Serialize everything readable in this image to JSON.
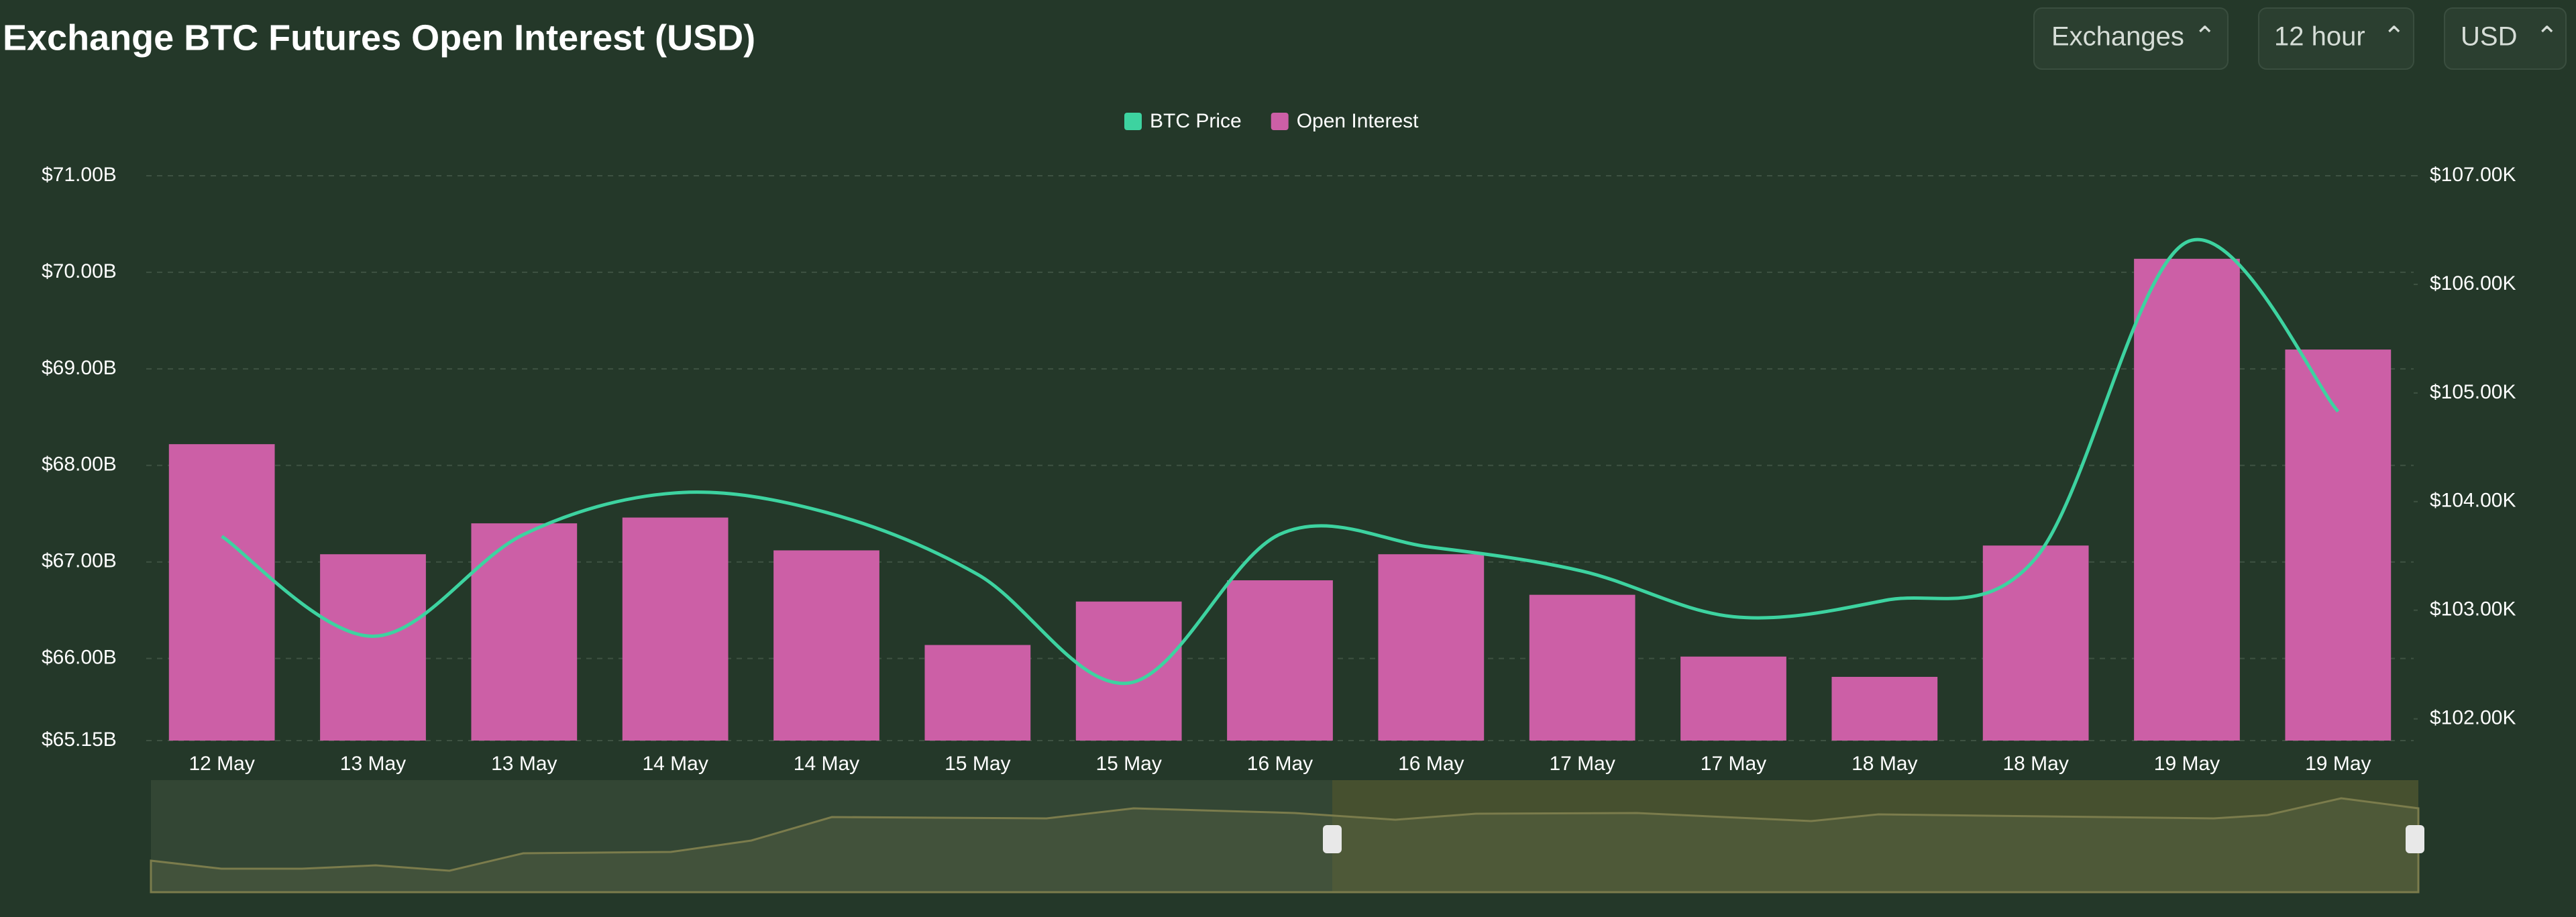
{
  "title": "Exchange BTC Futures Open Interest (USD)",
  "controls": [
    "Exchanges",
    "12 hour",
    "USD"
  ],
  "chart_data": {
    "type": "bar",
    "categories": [
      "12 May",
      "13 May",
      "13 May",
      "14 May",
      "14 May",
      "15 May",
      "15 May",
      "16 May",
      "16 May",
      "17 May",
      "17 May",
      "18 May",
      "18 May",
      "19 May",
      "19 May"
    ],
    "series": [
      {
        "name": "BTC Price",
        "type": "line",
        "axis": "y2",
        "color": "#3dd3a0",
        "values": [
          103.68,
          102.76,
          103.7,
          104.08,
          103.9,
          103.33,
          102.33,
          103.7,
          103.58,
          103.36,
          102.94,
          103.09,
          103.48,
          106.39,
          104.83
        ]
      },
      {
        "name": "Open Interest",
        "type": "bar",
        "color": "#cc5fa6",
        "values": [
          68.22,
          67.08,
          67.4,
          67.46,
          67.12,
          66.14,
          66.59,
          66.81,
          67.08,
          66.66,
          66.02,
          65.81,
          67.17,
          70.14,
          69.2
        ]
      }
    ],
    "ylim": [
      65.15,
      71
    ],
    "yticks": [
      {
        "value": 65.15,
        "label": "$65.15B"
      },
      {
        "value": 66,
        "label": "$66.00B"
      },
      {
        "value": 67,
        "label": "$67.00B"
      },
      {
        "value": 68,
        "label": "$68.00B"
      },
      {
        "value": 69,
        "label": "$69.00B"
      },
      {
        "value": 70,
        "label": "$70.00B"
      },
      {
        "value": 71,
        "label": "$71.00B"
      }
    ],
    "y2lim": [
      101.8,
      107
    ],
    "y2ticks": [
      {
        "value": 102,
        "label": "$102.00K"
      },
      {
        "value": 103,
        "label": "$103.00K"
      },
      {
        "value": 104,
        "label": "$104.00K"
      },
      {
        "value": 105,
        "label": "$105.00K"
      },
      {
        "value": 106,
        "label": "$106.00K"
      },
      {
        "value": 107,
        "label": "$107.00K"
      }
    ],
    "grid": true,
    "legend": "top"
  }
}
